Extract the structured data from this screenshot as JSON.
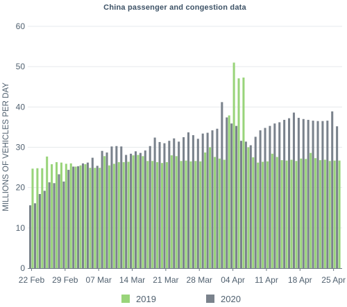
{
  "chart_data": {
    "type": "bar",
    "title": "China passenger and congestion data",
    "ylabel": "MILLIONS OF VEHICLES PER DAY",
    "xlabel": "",
    "ylim": [
      0,
      60
    ],
    "y_ticks": [
      0,
      10,
      20,
      30,
      40,
      50,
      60
    ],
    "grid": true,
    "legend_position": "bottom",
    "x_tick_labels": [
      "22 Feb",
      "29 Feb",
      "07 Mar",
      "14 Mar",
      "21 Mar",
      "28 Mar",
      "04 Apr",
      "11 Apr",
      "18 Apr",
      "25 Apr"
    ],
    "x_tick_every": 7,
    "x": [
      "22 Feb",
      "23 Feb",
      "24 Feb",
      "25 Feb",
      "26 Feb",
      "27 Feb",
      "28 Feb",
      "29 Feb",
      "01 Mar",
      "02 Mar",
      "03 Mar",
      "04 Mar",
      "05 Mar",
      "06 Mar",
      "07 Mar",
      "08 Mar",
      "09 Mar",
      "10 Mar",
      "11 Mar",
      "12 Mar",
      "13 Mar",
      "14 Mar",
      "15 Mar",
      "16 Mar",
      "17 Mar",
      "18 Mar",
      "19 Mar",
      "20 Mar",
      "21 Mar",
      "22 Mar",
      "23 Mar",
      "24 Mar",
      "25 Mar",
      "26 Mar",
      "27 Mar",
      "28 Mar",
      "29 Mar",
      "30 Mar",
      "31 Mar",
      "01 Apr",
      "02 Apr",
      "03 Apr",
      "04 Apr",
      "05 Apr",
      "06 Apr",
      "07 Apr",
      "08 Apr",
      "09 Apr",
      "10 Apr",
      "11 Apr",
      "12 Apr",
      "13 Apr",
      "14 Apr",
      "15 Apr",
      "16 Apr",
      "17 Apr",
      "18 Apr",
      "19 Apr",
      "20 Apr",
      "21 Apr",
      "22 Apr",
      "23 Apr",
      "24 Apr",
      "25 Apr",
      "26 Apr"
    ],
    "series": [
      {
        "name": "2019",
        "color": "#99d47a",
        "values": [
          24.7,
          24.8,
          24.8,
          27.7,
          25.8,
          26.3,
          26.2,
          25.9,
          26.0,
          25.2,
          25.5,
          25.8,
          24.9,
          24.9,
          24.9,
          27.8,
          25.5,
          25.9,
          26.3,
          26.3,
          26.4,
          28.0,
          28.1,
          27.8,
          26.6,
          26.6,
          26.3,
          26.1,
          26.3,
          28.0,
          27.8,
          26.6,
          26.7,
          26.5,
          26.6,
          26.5,
          28.7,
          30.0,
          27.6,
          27.2,
          26.9,
          37.9,
          51.0,
          47.1,
          47.3,
          30.0,
          27.5,
          26.2,
          26.4,
          26.5,
          28.4,
          27.6,
          26.8,
          26.7,
          26.9,
          26.6,
          27.2,
          27.1,
          28.6,
          27.3,
          26.8,
          26.9,
          26.6,
          26.7,
          26.7
        ]
      },
      {
        "name": "2020",
        "color": "#7a828c",
        "values": [
          15.6,
          16.1,
          18.4,
          19.2,
          21.3,
          21.1,
          23.3,
          21.5,
          24.4,
          25.2,
          25.3,
          26.0,
          26.2,
          27.4,
          25.4,
          29.1,
          28.7,
          30.2,
          30.3,
          30.2,
          28.1,
          28.4,
          29.0,
          28.6,
          29.2,
          30.3,
          32.4,
          31.3,
          31.0,
          31.6,
          32.2,
          31.4,
          32.5,
          33.7,
          33.0,
          32.1,
          33.4,
          33.6,
          34.2,
          34.6,
          41.2,
          37.4,
          35.9,
          35.3,
          31.6,
          31.4,
          30.5,
          32.6,
          34.2,
          34.8,
          35.3,
          35.9,
          36.2,
          36.8,
          37.2,
          38.6,
          37.3,
          37.0,
          36.8,
          36.6,
          36.5,
          36.5,
          36.6,
          38.9,
          35.2
        ]
      }
    ]
  }
}
